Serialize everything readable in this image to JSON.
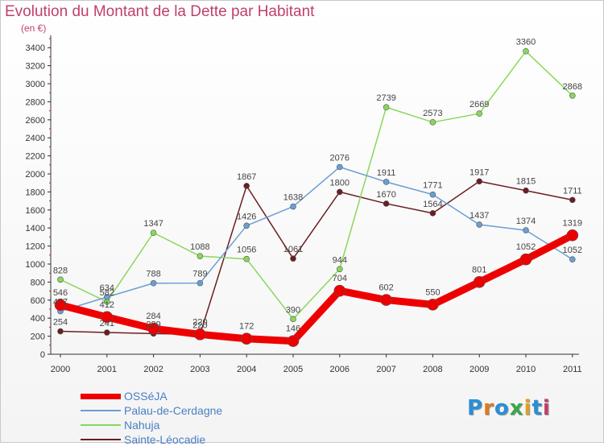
{
  "title": "Evolution du Montant de la Dette par Habitant",
  "subtitle": "(en €)",
  "logo": {
    "text": "Proxiti",
    "colors": [
      "#2a8fd6",
      "#e07a1a",
      "#2a8fd6",
      "#3aa84a",
      "#e0a020",
      "#2a8fd6",
      "#c0406a"
    ]
  },
  "chart_data": {
    "type": "line",
    "categories": [
      "2000",
      "2001",
      "2002",
      "2003",
      "2004",
      "2005",
      "2006",
      "2007",
      "2008",
      "2009",
      "2010",
      "2011"
    ],
    "yticks": [
      0,
      200,
      400,
      600,
      800,
      1000,
      1200,
      1400,
      1600,
      1800,
      2000,
      2200,
      2400,
      2600,
      2800,
      3000,
      3200,
      3400
    ],
    "ylim": [
      0,
      3500
    ],
    "grid": false,
    "legend_position": "bottom-left",
    "series": [
      {
        "name": "Sainte-Léocadie",
        "color": "#6b1e22",
        "width": 1.5,
        "marker": 3.5,
        "values": [
          254,
          241,
          229,
          220,
          1867,
          1061,
          1800,
          1670,
          1564,
          1917,
          1815,
          1711
        ],
        "labels": [
          "254",
          "241",
          "229",
          "220",
          "1867",
          "1061",
          "1800",
          "1670",
          "1564",
          "1917",
          "1815",
          "1711"
        ]
      },
      {
        "name": "Nahuja",
        "color": "#88d85a",
        "width": 1.5,
        "marker": 3.5,
        "values": [
          828,
          582,
          1347,
          1088,
          1056,
          390,
          944,
          2739,
          2573,
          2669,
          3360,
          2868
        ],
        "labels": [
          "828",
          "582",
          "1347",
          "1088",
          "1056",
          "390",
          "944",
          "2739",
          "2573",
          "2669",
          "3360",
          "2868"
        ]
      },
      {
        "name": "Palau-de-Cerdagne",
        "color": "#6a9fd4",
        "width": 1.5,
        "marker": 3.5,
        "values": [
          477,
          634,
          788,
          789,
          1426,
          1638,
          2076,
          1911,
          1771,
          1437,
          1374,
          1052
        ],
        "labels": [
          "477",
          "634",
          "788",
          "789",
          "1426",
          "1638",
          "2076",
          "1911",
          "1771",
          "1437",
          "1374",
          "1052"
        ]
      },
      {
        "name": "OSSéJA",
        "color": "#ee0000",
        "width": 9,
        "marker": 7,
        "values": [
          546,
          412,
          284,
          220,
          172,
          146,
          704,
          602,
          550,
          801,
          1052,
          1319
        ],
        "labels": [
          "546",
          "412",
          "284",
          "220",
          "172",
          "146",
          "704",
          "602",
          "550",
          "801",
          "1052",
          "1319"
        ]
      }
    ]
  },
  "legend": [
    {
      "name": "OSSéJA",
      "color": "#ee0000",
      "thickness": 7
    },
    {
      "name": "Palau-de-Cerdagne",
      "color": "#6a9fd4",
      "thickness": 2
    },
    {
      "name": "Nahuja",
      "color": "#88d85a",
      "thickness": 2
    },
    {
      "name": "Sainte-Léocadie",
      "color": "#6b1e22",
      "thickness": 2
    }
  ]
}
